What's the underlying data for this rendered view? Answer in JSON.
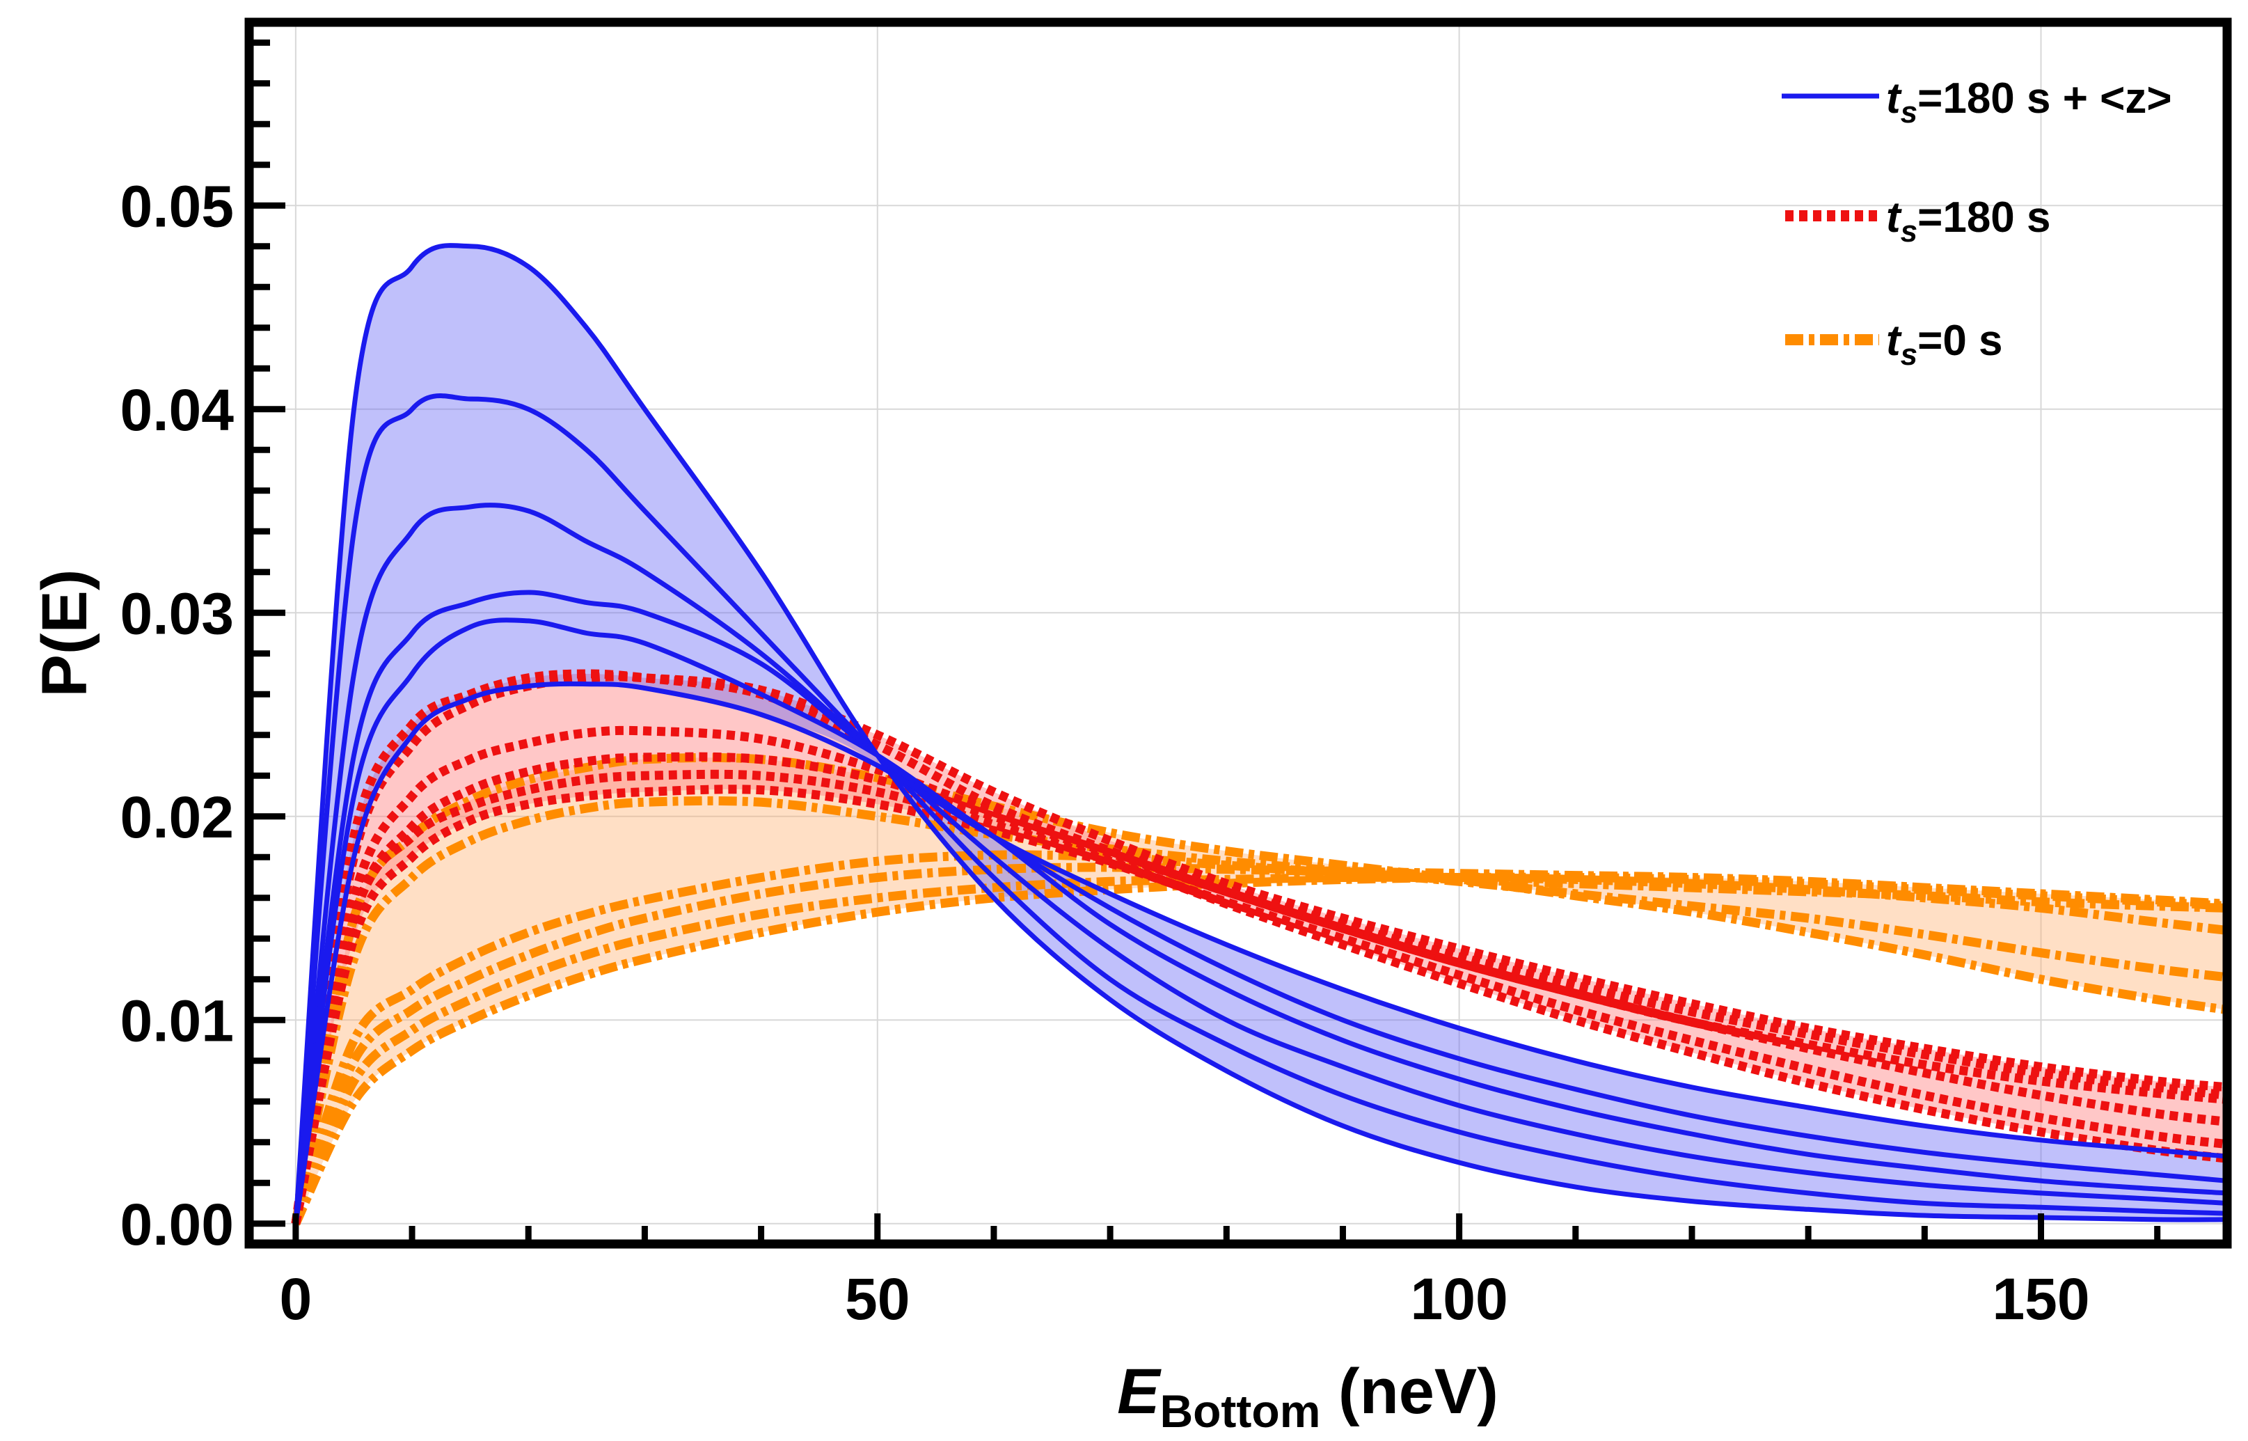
{
  "chart_data": {
    "type": "line",
    "xlabel": {
      "main": "E",
      "sub": "Bottom",
      "unit": " (neV)"
    },
    "ylabel": "P(E)",
    "xlim": [
      -4,
      166
    ],
    "ylim": [
      -0.001,
      0.059
    ],
    "xticks": [
      0,
      50,
      100,
      150
    ],
    "xtick_labels": [
      "0",
      "50",
      "100",
      "150"
    ],
    "yticks": [
      0.0,
      0.01,
      0.02,
      0.03,
      0.04,
      0.05
    ],
    "ytick_labels": [
      "0.00",
      "0.01",
      "0.02",
      "0.03",
      "0.04",
      "0.05"
    ],
    "grid": true,
    "legend_position": "top-right",
    "legend": [
      {
        "t": "t",
        "sub": "s",
        "text": "=180 s + <z>",
        "style": "solid",
        "color": "#1a1aee"
      },
      {
        "t": "t",
        "sub": "s",
        "text": "=180 s",
        "style": "dotted",
        "color": "#ee1111"
      },
      {
        "t": "t",
        "sub": "s",
        "text": "=0 s",
        "style": "dashdot",
        "color": "#ff8c00"
      }
    ],
    "series": [
      {
        "group": "t_s=180 s + <z>",
        "style": "solid",
        "color": "#1a1aee",
        "fill": "rgba(90,90,245,0.38)",
        "curves": [
          {
            "x": [
              0,
              5,
              10,
              15,
              20,
              25,
              30,
              40,
              50,
              60,
              70,
              80,
              90,
              100,
              110,
              120,
              130,
              140,
              150,
              160,
              166
            ],
            "y": [
              0.0,
              0.04,
              0.047,
              0.048,
              0.047,
              0.044,
              0.04,
              0.032,
              0.023,
              0.016,
              0.011,
              0.0075,
              0.0048,
              0.003,
              0.0018,
              0.0011,
              0.0007,
              0.0004,
              0.0003,
              0.0002,
              0.0002
            ]
          },
          {
            "x": [
              0,
              5,
              10,
              15,
              20,
              25,
              30,
              40,
              50,
              60,
              70,
              80,
              90,
              100,
              110,
              120,
              130,
              140,
              150,
              160,
              166
            ],
            "y": [
              0.0,
              0.034,
              0.04,
              0.0405,
              0.04,
              0.038,
              0.035,
              0.029,
              0.023,
              0.017,
              0.012,
              0.0088,
              0.0063,
              0.0045,
              0.0032,
              0.0022,
              0.0015,
              0.001,
              0.0008,
              0.0006,
              0.0005
            ]
          },
          {
            "x": [
              0,
              5,
              10,
              15,
              20,
              25,
              30,
              40,
              50,
              60,
              70,
              80,
              90,
              100,
              110,
              120,
              130,
              140,
              150,
              160,
              166
            ],
            "y": [
              0.0,
              0.027,
              0.034,
              0.0352,
              0.035,
              0.0335,
              0.032,
              0.028,
              0.023,
              0.018,
              0.0135,
              0.01,
              0.0077,
              0.0058,
              0.0044,
              0.0033,
              0.0025,
              0.0019,
              0.0015,
              0.0012,
              0.001
            ]
          },
          {
            "x": [
              0,
              5,
              10,
              15,
              20,
              25,
              30,
              40,
              50,
              60,
              70,
              80,
              90,
              100,
              110,
              120,
              130,
              140,
              150,
              160,
              166
            ],
            "y": [
              0.0,
              0.023,
              0.029,
              0.0305,
              0.031,
              0.0305,
              0.03,
              0.0275,
              0.023,
              0.019,
              0.0147,
              0.0115,
              0.009,
              0.0071,
              0.0056,
              0.0044,
              0.0034,
              0.0027,
              0.0021,
              0.0017,
              0.0015
            ]
          },
          {
            "x": [
              0,
              5,
              10,
              15,
              20,
              25,
              30,
              40,
              50,
              60,
              70,
              80,
              90,
              100,
              110,
              120,
              130,
              140,
              150,
              160,
              166
            ],
            "y": [
              0.0,
              0.021,
              0.027,
              0.0293,
              0.0296,
              0.029,
              0.0285,
              0.026,
              0.023,
              0.019,
              0.0155,
              0.0125,
              0.01,
              0.0081,
              0.0066,
              0.0053,
              0.0043,
              0.0035,
              0.0029,
              0.0024,
              0.0021
            ]
          },
          {
            "x": [
              0,
              5,
              10,
              15,
              20,
              25,
              30,
              40,
              50,
              60,
              70,
              80,
              90,
              100,
              110,
              120,
              130,
              140,
              150,
              160,
              166
            ],
            "y": [
              0.0,
              0.018,
              0.024,
              0.0258,
              0.0264,
              0.0265,
              0.0263,
              0.025,
              0.0225,
              0.019,
              0.0162,
              0.0137,
              0.0115,
              0.0096,
              0.008,
              0.0067,
              0.0057,
              0.0048,
              0.0041,
              0.0036,
              0.0033
            ]
          }
        ]
      },
      {
        "group": "t_s=180 s",
        "style": "dotted",
        "color": "#ee1111",
        "fill": "rgba(255,130,130,0.45)",
        "curves": [
          {
            "x": [
              0,
              5,
              10,
              15,
              20,
              25,
              30,
              40,
              50,
              60,
              70,
              80,
              90,
              100,
              110,
              120,
              130,
              140,
              150,
              160,
              166
            ],
            "y": [
              0.0,
              0.019,
              0.0245,
              0.026,
              0.0268,
              0.027,
              0.0268,
              0.026,
              0.0235,
              0.0205,
              0.0183,
              0.0163,
              0.0145,
              0.0128,
              0.0113,
              0.0099,
              0.0088,
              0.0078,
              0.007,
              0.0064,
              0.0061
            ]
          },
          {
            "x": [
              0,
              5,
              10,
              15,
              20,
              25,
              30,
              40,
              50,
              60,
              70,
              80,
              90,
              100,
              110,
              120,
              130,
              140,
              150,
              160,
              166
            ],
            "y": [
              0.0,
              0.018,
              0.0235,
              0.0255,
              0.0264,
              0.0268,
              0.0268,
              0.0262,
              0.024,
              0.0212,
              0.0188,
              0.0167,
              0.015,
              0.0135,
              0.0121,
              0.0108,
              0.0096,
              0.0086,
              0.0077,
              0.007,
              0.0067
            ]
          },
          {
            "x": [
              0,
              5,
              10,
              15,
              20,
              25,
              30,
              40,
              50,
              60,
              70,
              80,
              90,
              100,
              110,
              120,
              130,
              140,
              150,
              160,
              166
            ],
            "y": [
              0.0,
              0.016,
              0.021,
              0.0228,
              0.0236,
              0.0241,
              0.0242,
              0.0238,
              0.0223,
              0.0202,
              0.0183,
              0.0164,
              0.0147,
              0.0131,
              0.0117,
              0.0104,
              0.0093,
              0.0083,
              0.0074,
              0.0067,
              0.0063
            ]
          },
          {
            "x": [
              0,
              5,
              10,
              15,
              20,
              25,
              30,
              40,
              50,
              60,
              70,
              80,
              90,
              100,
              110,
              120,
              130,
              140,
              150,
              160,
              166
            ],
            "y": [
              0.0,
              0.015,
              0.0195,
              0.0213,
              0.0222,
              0.0227,
              0.0229,
              0.0228,
              0.0218,
              0.02,
              0.0182,
              0.0163,
              0.0145,
              0.0128,
              0.0113,
              0.0099,
              0.0086,
              0.0074,
              0.0063,
              0.0054,
              0.005
            ]
          },
          {
            "x": [
              0,
              5,
              10,
              15,
              20,
              25,
              30,
              40,
              50,
              60,
              70,
              80,
              90,
              100,
              110,
              120,
              130,
              140,
              150,
              160,
              166
            ],
            "y": [
              0.0,
              0.014,
              0.018,
              0.0198,
              0.0206,
              0.021,
              0.0212,
              0.0213,
              0.0206,
              0.0193,
              0.0177,
              0.0158,
              0.014,
              0.0122,
              0.0105,
              0.009,
              0.0076,
              0.0063,
              0.0052,
              0.0043,
              0.0039
            ]
          },
          {
            "x": [
              0,
              5,
              10,
              15,
              20,
              25,
              30,
              40,
              50,
              60,
              70,
              80,
              90,
              100,
              110,
              120,
              130,
              140,
              150,
              160,
              166
            ],
            "y": [
              0.0,
              0.015,
              0.019,
              0.0205,
              0.0213,
              0.0218,
              0.022,
              0.022,
              0.0212,
              0.0196,
              0.0178,
              0.0157,
              0.0137,
              0.0118,
              0.01,
              0.0084,
              0.0069,
              0.0056,
              0.0045,
              0.0036,
              0.0032
            ]
          }
        ]
      },
      {
        "group": "t_s=0 s",
        "style": "dashdot",
        "color": "#ff8c00",
        "fill": "rgba(255,175,110,0.40)",
        "curves": [
          {
            "x": [
              0,
              5,
              10,
              15,
              20,
              25,
              30,
              40,
              50,
              60,
              70,
              80,
              90,
              100,
              110,
              120,
              130,
              140,
              150,
              160,
              166
            ],
            "y": [
              0.0,
              0.015,
              0.019,
              0.0208,
              0.0218,
              0.0224,
              0.0228,
              0.0228,
              0.0219,
              0.0205,
              0.0192,
              0.0183,
              0.0176,
              0.0169,
              0.0161,
              0.0153,
              0.0143,
              0.0132,
              0.012,
              0.011,
              0.0105
            ]
          },
          {
            "x": [
              0,
              5,
              10,
              15,
              20,
              25,
              30,
              40,
              50,
              60,
              70,
              80,
              90,
              100,
              110,
              120,
              130,
              140,
              150,
              160,
              166
            ],
            "y": [
              0.0,
              0.013,
              0.017,
              0.0188,
              0.0198,
              0.0204,
              0.0207,
              0.0207,
              0.02,
              0.0191,
              0.0184,
              0.0178,
              0.0173,
              0.0168,
              0.0162,
              0.0156,
              0.015,
              0.0142,
              0.0133,
              0.0125,
              0.0121
            ]
          },
          {
            "x": [
              0,
              5,
              10,
              15,
              20,
              25,
              30,
              40,
              50,
              60,
              70,
              80,
              90,
              100,
              110,
              120,
              130,
              140,
              150,
              160,
              166
            ],
            "y": [
              0.0,
              0.009,
              0.0115,
              0.0131,
              0.0143,
              0.0152,
              0.0159,
              0.017,
              0.0178,
              0.0181,
              0.018,
              0.0176,
              0.0172,
              0.0169,
              0.0167,
              0.0165,
              0.0163,
              0.0161,
              0.0158,
              0.0156,
              0.0155
            ]
          },
          {
            "x": [
              0,
              5,
              10,
              15,
              20,
              25,
              30,
              40,
              50,
              60,
              70,
              80,
              90,
              100,
              110,
              120,
              130,
              140,
              150,
              160,
              166
            ],
            "y": [
              0.0,
              0.008,
              0.0105,
              0.012,
              0.0132,
              0.0142,
              0.015,
              0.0162,
              0.017,
              0.0174,
              0.0175,
              0.0174,
              0.0173,
              0.0172,
              0.0171,
              0.017,
              0.0168,
              0.0165,
              0.0162,
              0.0159,
              0.0157
            ]
          },
          {
            "x": [
              0,
              5,
              10,
              15,
              20,
              25,
              30,
              40,
              50,
              60,
              70,
              80,
              90,
              100,
              110,
              120,
              130,
              140,
              150,
              160,
              166
            ],
            "y": [
              0.0,
              0.007,
              0.0095,
              0.011,
              0.0122,
              0.0132,
              0.014,
              0.0152,
              0.016,
              0.0165,
              0.0168,
              0.0169,
              0.017,
              0.017,
              0.0169,
              0.0167,
              0.0164,
              0.016,
              0.0155,
              0.0148,
              0.0144
            ]
          },
          {
            "x": [
              0,
              5,
              10,
              15,
              20,
              25,
              30,
              40,
              50,
              60,
              70,
              80,
              90,
              100,
              110,
              120,
              130,
              140,
              150,
              160,
              166
            ],
            "y": [
              0.0,
              0.006,
              0.0085,
              0.01,
              0.0112,
              0.0122,
              0.013,
              0.0143,
              0.0153,
              0.016,
              0.0164,
              0.0167,
              0.0169,
              0.017,
              0.017,
              0.0169,
              0.0167,
              0.0164,
              0.0161,
              0.0158,
              0.0156
            ]
          }
        ]
      }
    ]
  }
}
